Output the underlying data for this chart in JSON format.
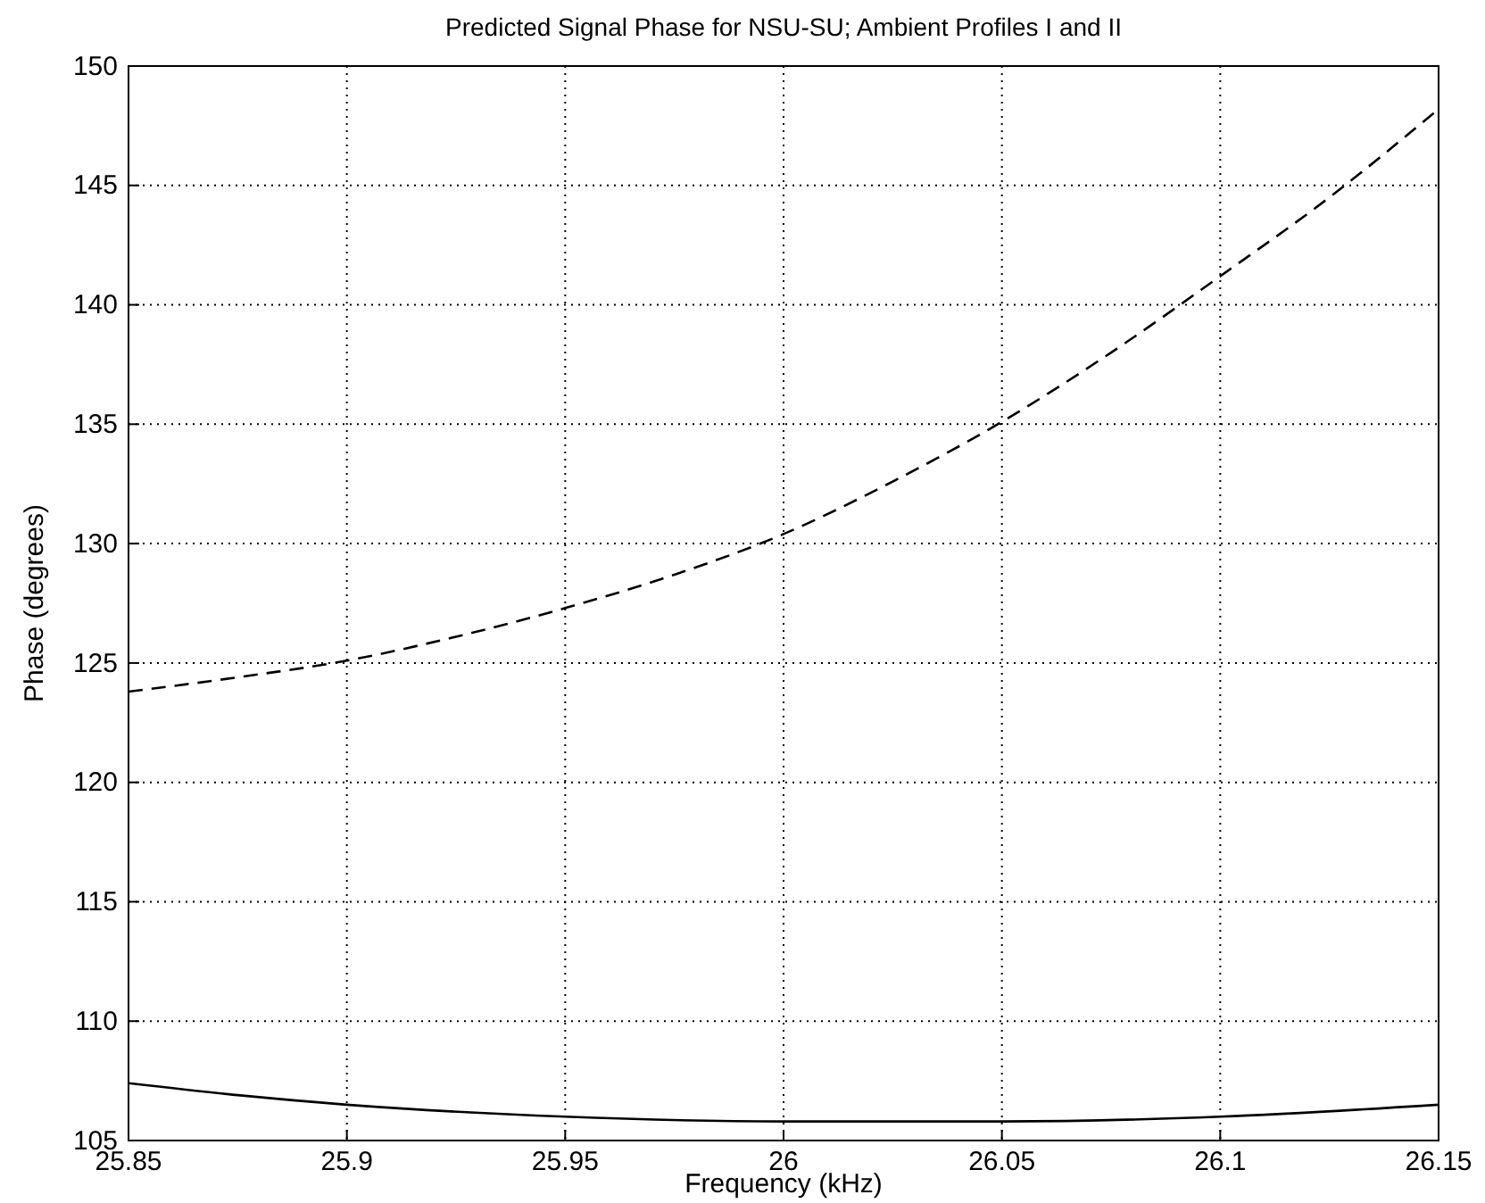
{
  "chart_data": {
    "type": "line",
    "title": "Predicted Signal Phase for NSU-SU; Ambient Profiles I and II",
    "xlabel": "Frequency (kHz)",
    "ylabel": "Phase (degrees)",
    "xlim": [
      25.85,
      26.15
    ],
    "xticks": [
      25.85,
      25.9,
      25.95,
      26,
      26.05,
      26.1,
      26.15
    ],
    "ylim": [
      105,
      150
    ],
    "yticks": [
      105,
      110,
      115,
      120,
      125,
      130,
      135,
      140,
      145,
      150
    ],
    "grid": true,
    "series": [
      {
        "color": "#000000",
        "line_style": "solid",
        "x": [
          25.85,
          25.875,
          25.9,
          25.95,
          26.0,
          26.05,
          26.1,
          26.15
        ],
        "values": [
          107.4,
          106.9,
          106.5,
          106.0,
          105.8,
          105.8,
          106.0,
          106.5
        ]
      },
      {
        "color": "#000000",
        "line_style": "dashed",
        "x": [
          25.85,
          25.875,
          25.9,
          25.925,
          25.95,
          25.975,
          26.0,
          26.025,
          26.05,
          26.075,
          26.1,
          26.125,
          26.15
        ],
        "values": [
          123.8,
          124.4,
          125.1,
          126.1,
          127.3,
          128.7,
          130.4,
          132.6,
          135.1,
          138.0,
          141.2,
          144.5,
          148.2
        ]
      }
    ]
  }
}
